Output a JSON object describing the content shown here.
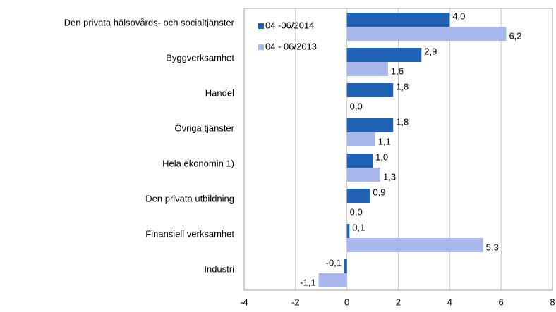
{
  "chart_data": {
    "type": "barh",
    "categories": [
      "Den privata hälsovårds- och socialtjänster",
      "Byggverksamhet",
      "Handel",
      "Övriga tjänster",
      "Hela ekonomin 1)",
      "Den privata utbildning",
      "Finansiell verksamhet",
      "Industri"
    ],
    "series": [
      {
        "name": "04 -06/2014",
        "color": "#1f62b4",
        "values": [
          4.0,
          2.9,
          1.8,
          1.8,
          1.0,
          0.9,
          0.1,
          -0.1
        ],
        "value_labels": [
          "4,0",
          "2,9",
          "1,8",
          "1,8",
          "1,0",
          "0,9",
          "0,1",
          "-0,1"
        ]
      },
      {
        "name": "04 - 06/2013",
        "color": "#a8b8ec",
        "values": [
          6.2,
          1.6,
          0.0,
          1.1,
          1.3,
          0.0,
          5.3,
          -1.1
        ],
        "value_labels": [
          "6,2",
          "1,6",
          "0,0",
          "1,1",
          "1,3",
          "0,0",
          "5,3",
          "-1,1"
        ]
      }
    ],
    "xlim": [
      -4,
      8
    ],
    "xticks": [
      -4,
      -2,
      0,
      2,
      4,
      6,
      8
    ],
    "grid": true,
    "legend": "upper-left"
  }
}
